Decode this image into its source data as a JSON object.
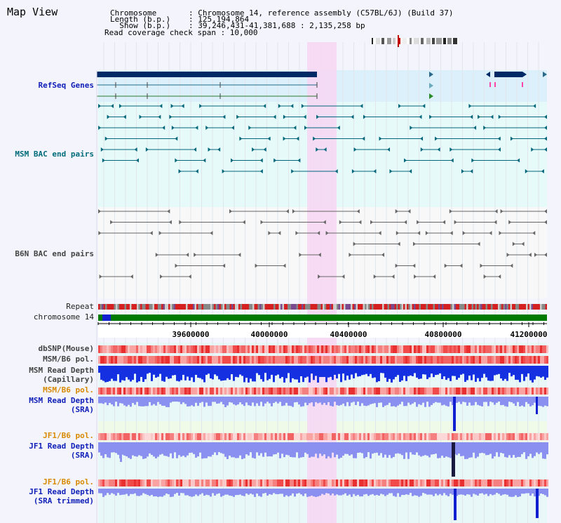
{
  "title": "Map View",
  "header": {
    "rows": [
      {
        "key": "Chromosome",
        "value": ": Chromosome 14, reference assembly (C57BL/6J) (Build 37)"
      },
      {
        "key": "Length (b.p.)",
        "value": ": 125,194,864"
      },
      {
        "key": "  Show (b.p.)",
        "value": ": 39,246,431-41,381,688 : 2,135,258 bp"
      }
    ],
    "coverage": "Read coverage check span : 10,000"
  },
  "tracks": {
    "refseq": "RefSeq Genes",
    "msm_bac": "MSM BAC end pairs",
    "b6n_bac": "B6N BAC end pairs",
    "repeat": "Repeat",
    "chromosome": "chromosome 14",
    "dbsnp": "dbSNP(Mouse)",
    "msm_pol": "MSM/B6 pol.",
    "msm_depth_cap_1": "MSM Read Depth",
    "msm_depth_cap_2": "(Capillary)",
    "msm_pol_2": "MSM/B6 pol.",
    "msm_depth_sra_1": "MSM Read Depth",
    "msm_depth_sra_2": "(SRA)",
    "jf1_pol": "JF1/B6 pol.",
    "jf1_depth_1": "JF1 Read Depth",
    "jf1_depth_2": "(SRA)",
    "jf1_pol_2": "JF1/B6 pol.",
    "jf1_trim_1": "JF1 Read Depth",
    "jf1_trim_2": "(SRA trimmed)"
  },
  "axis": {
    "ticks": [
      "39600000",
      "40000000",
      "40400000",
      "40800000",
      "41200000"
    ]
  },
  "colors": {
    "highlight": "#f7d6f3",
    "refseq_bg": "#dbf0fa",
    "bac_bg": "#e6fafa",
    "gene_dark": "#002a66",
    "msm_feature": "#00667a",
    "b6n_feature": "#666666",
    "chrom_green": "#007a00",
    "depth_blue": "#1530e0",
    "depth_light": "#8a90f0",
    "pol_red": "#f04040"
  }
}
